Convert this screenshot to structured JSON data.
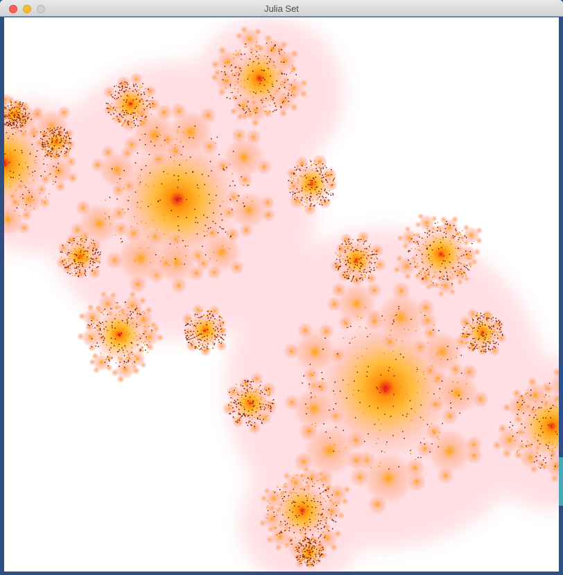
{
  "window": {
    "title": "Julia Set"
  },
  "colors": {
    "center": "#e8141c",
    "core": "#ffb000",
    "body": "#ffb89c",
    "glow": "#ffd6dc",
    "background": "#ffffff"
  },
  "icons": [
    "close-icon",
    "minimize-icon",
    "zoom-icon"
  ]
}
